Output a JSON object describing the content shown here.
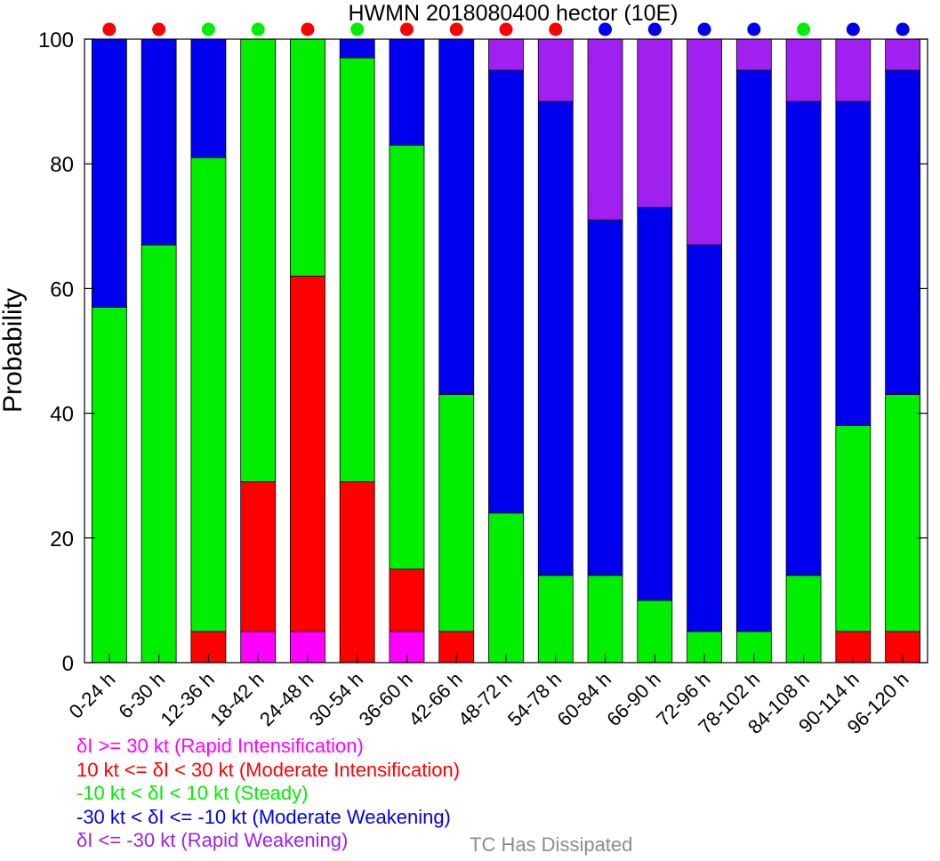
{
  "chart_data": {
    "type": "bar",
    "stacked": true,
    "title": "HWMN 2018080400 hector (10E)",
    "xlabel": "",
    "ylabel": "Probability",
    "ylim": [
      0,
      100
    ],
    "yticks": [
      0,
      20,
      40,
      60,
      80,
      100
    ],
    "grid": false,
    "categories": [
      "0-24 h",
      "6-30 h",
      "12-36 h",
      "18-42 h",
      "24-48 h",
      "30-54 h",
      "36-60 h",
      "42-66 h",
      "48-72 h",
      "54-78 h",
      "60-84 h",
      "66-90 h",
      "72-96 h",
      "78-102 h",
      "84-108 h",
      "90-114 h",
      "96-120 h"
    ],
    "series": [
      {
        "name": "δI >= 30 kt (Rapid Intensification)",
        "color": "#ff00ff",
        "values": [
          0,
          0,
          0,
          5,
          5,
          0,
          5,
          0,
          0,
          0,
          0,
          0,
          0,
          0,
          0,
          0,
          0
        ]
      },
      {
        "name": "10 kt <= δI < 30 kt (Moderate Intensification)",
        "color": "#ff0000",
        "values": [
          0,
          0,
          5,
          24,
          57,
          29,
          10,
          5,
          0,
          0,
          0,
          0,
          0,
          0,
          0,
          5,
          5
        ]
      },
      {
        "name": "-10 kt < δI < 10 kt (Steady)",
        "color": "#00ee00",
        "values": [
          57,
          67,
          76,
          71,
          38,
          68,
          68,
          38,
          24,
          14,
          14,
          10,
          5,
          5,
          14,
          33,
          38
        ]
      },
      {
        "name": "-30 kt < δI <= -10 kt (Moderate Weakening)",
        "color": "#0000ee",
        "values": [
          43,
          33,
          19,
          0,
          0,
          3,
          17,
          57,
          71,
          76,
          57,
          63,
          62,
          90,
          76,
          52,
          52
        ]
      },
      {
        "name": "δI <= -30 kt (Rapid Weakening)",
        "color": "#a020f0",
        "values": [
          0,
          0,
          0,
          0,
          0,
          0,
          0,
          0,
          5,
          10,
          29,
          27,
          33,
          5,
          10,
          10,
          5
        ]
      }
    ],
    "indicator_colors": [
      "#ff0000",
      "#ff0000",
      "#00ee00",
      "#00ee00",
      "#ff0000",
      "#00ee00",
      "#ff0000",
      "#ff0000",
      "#ff0000",
      "#ff0000",
      "#0000ee",
      "#0000ee",
      "#0000ee",
      "#0000ee",
      "#00ee00",
      "#0000ee",
      "#0000ee"
    ],
    "legend_position": "bottom-left",
    "legend": [
      {
        "label": "δI >= 30 kt (Rapid Intensification)",
        "color": "#ff00ff"
      },
      {
        "label": "10 kt <= δI < 30 kt (Moderate Intensification)",
        "color": "#ff0000"
      },
      {
        "label": "-10 kt < δI < 10 kt (Steady)",
        "color": "#00ee00"
      },
      {
        "label": "-30 kt < δI <= -10 kt (Moderate Weakening)",
        "color": "#0000ee"
      },
      {
        "label": "δI <= -30 kt (Rapid Weakening)",
        "color": "#a020f0"
      }
    ],
    "note": {
      "label": "TC Has Dissipated",
      "color": "#8c8c8c"
    }
  }
}
